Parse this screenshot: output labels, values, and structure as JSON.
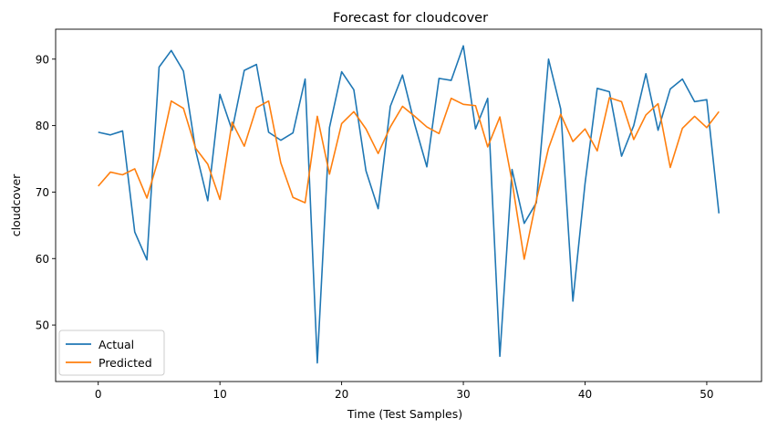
{
  "chart_data": {
    "type": "line",
    "title": "Forecast for cloudcover",
    "xlabel": "Time (Test Samples)",
    "ylabel": "cloudcover",
    "xlim": [
      -3.5,
      54.5
    ],
    "ylim": [
      41.5,
      94.5
    ],
    "xticks": [
      0,
      10,
      20,
      30,
      40,
      50
    ],
    "yticks": [
      50,
      60,
      70,
      80,
      90
    ],
    "grid": false,
    "legend_position": "lower-left",
    "series": [
      {
        "name": "Actual",
        "color": "#1f77b4",
        "values": [
          79.0,
          78.6,
          79.2,
          64.0,
          59.8,
          88.8,
          91.3,
          88.2,
          76.3,
          68.7,
          84.7,
          79.3,
          88.3,
          89.2,
          79.0,
          77.8,
          78.9,
          87.0,
          44.3,
          79.7,
          88.1,
          85.4,
          73.2,
          67.5,
          82.9,
          87.6,
          80.2,
          73.8,
          87.1,
          86.8,
          92.0,
          79.5,
          84.1,
          45.3,
          73.4,
          65.3,
          68.4,
          90.0,
          82.5,
          53.6,
          71.3,
          85.6,
          85.1,
          75.4,
          80.0,
          87.8,
          79.3,
          85.5,
          87.0,
          83.6,
          83.9,
          66.8
        ]
      },
      {
        "name": "Predicted",
        "color": "#ff7f0e",
        "values": [
          70.9,
          73.0,
          72.6,
          73.5,
          69.1,
          75.3,
          83.7,
          82.6,
          76.6,
          74.2,
          68.9,
          80.5,
          76.9,
          82.7,
          83.7,
          74.4,
          69.2,
          68.4,
          81.4,
          72.7,
          80.3,
          82.1,
          79.5,
          75.8,
          79.8,
          82.9,
          81.4,
          79.8,
          78.8,
          84.1,
          83.2,
          83.0,
          76.8,
          81.3,
          71.6,
          59.9,
          68.8,
          76.6,
          81.7,
          77.6,
          79.5,
          76.2,
          84.2,
          83.6,
          77.9,
          81.6,
          83.3,
          73.7,
          79.6,
          81.4,
          79.7,
          82.1
        ]
      }
    ]
  }
}
